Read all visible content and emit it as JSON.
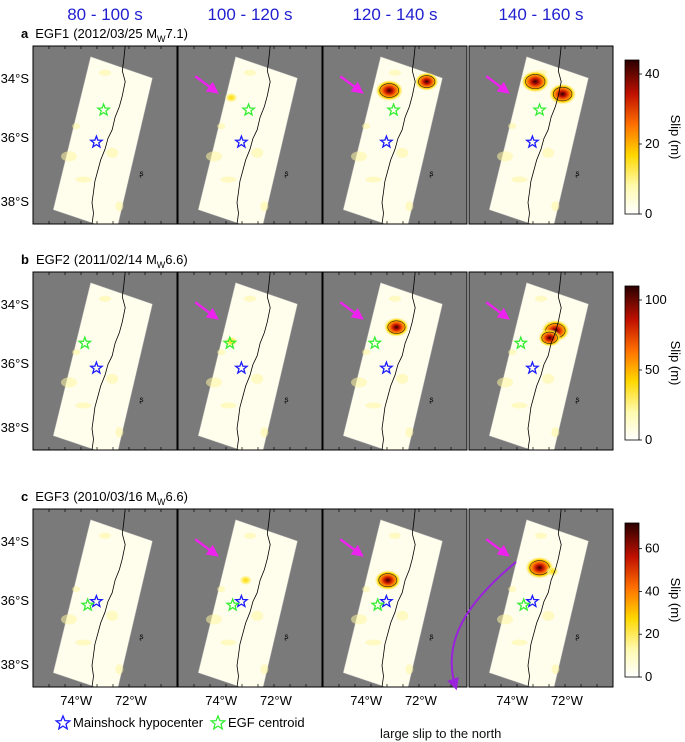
{
  "time_windows": [
    "80 - 100 s",
    "100 - 120 s",
    "120 - 140 s",
    "140 - 160 s"
  ],
  "rows": [
    {
      "letter": "a",
      "egf": "EGF1",
      "event": "(2012/03/25 M",
      "mag_sub": "W",
      "mag": "7.1)",
      "colorbar_ticks": [
        "40",
        "20",
        "0"
      ],
      "egf_star_pos": "north-of-hypocenter",
      "peaks": [
        [],
        [
          {
            "slip": 12
          }
        ],
        [
          {
            "slip": 40
          },
          {
            "slip": 22
          }
        ],
        [
          {
            "slip": 44
          },
          {
            "slip": 38
          }
        ]
      ]
    },
    {
      "letter": "b",
      "egf": "EGF2",
      "event": "(2011/02/14 M",
      "mag_sub": "W",
      "mag": "6.6)",
      "colorbar_ticks": [
        "100",
        "50",
        "0"
      ],
      "egf_star_pos": "northwest-of-hypocenter",
      "peaks": [
        [],
        [
          {
            "slip": 30
          }
        ],
        [
          {
            "slip": 70
          }
        ],
        [
          {
            "slip": 110
          },
          {
            "slip": 40
          }
        ]
      ]
    },
    {
      "letter": "c",
      "egf": "EGF3",
      "event": "(2010/03/16 M",
      "mag_sub": "W",
      "mag": "6.6)",
      "colorbar_ticks": [
        "60",
        "40",
        "20",
        "0"
      ],
      "egf_star_pos": "west-of-hypocenter",
      "peaks": [
        [],
        [
          {
            "slip": 10
          }
        ],
        [
          {
            "slip": 55
          }
        ],
        [
          {
            "slip": 72
          },
          {
            "slip": 25
          }
        ]
      ]
    }
  ],
  "lat_labels": [
    "34°S",
    "36°S",
    "38°S"
  ],
  "lon_labels": [
    "74°W",
    "72°W"
  ],
  "colorbar_label": "Slip (m)",
  "legend": {
    "mainshock": "Mainshock hypocenter",
    "egf": "EGF centroid"
  },
  "annotation": "large slip to the north",
  "colors": {
    "title_blue": "#1f1fd0",
    "arrow_magenta": "#ee22ee",
    "arrow_purple": "#9a22dd",
    "ocean": "#7a7a7a",
    "hypocenter": "#1a1aff",
    "egf_star": "#33ee33"
  }
}
